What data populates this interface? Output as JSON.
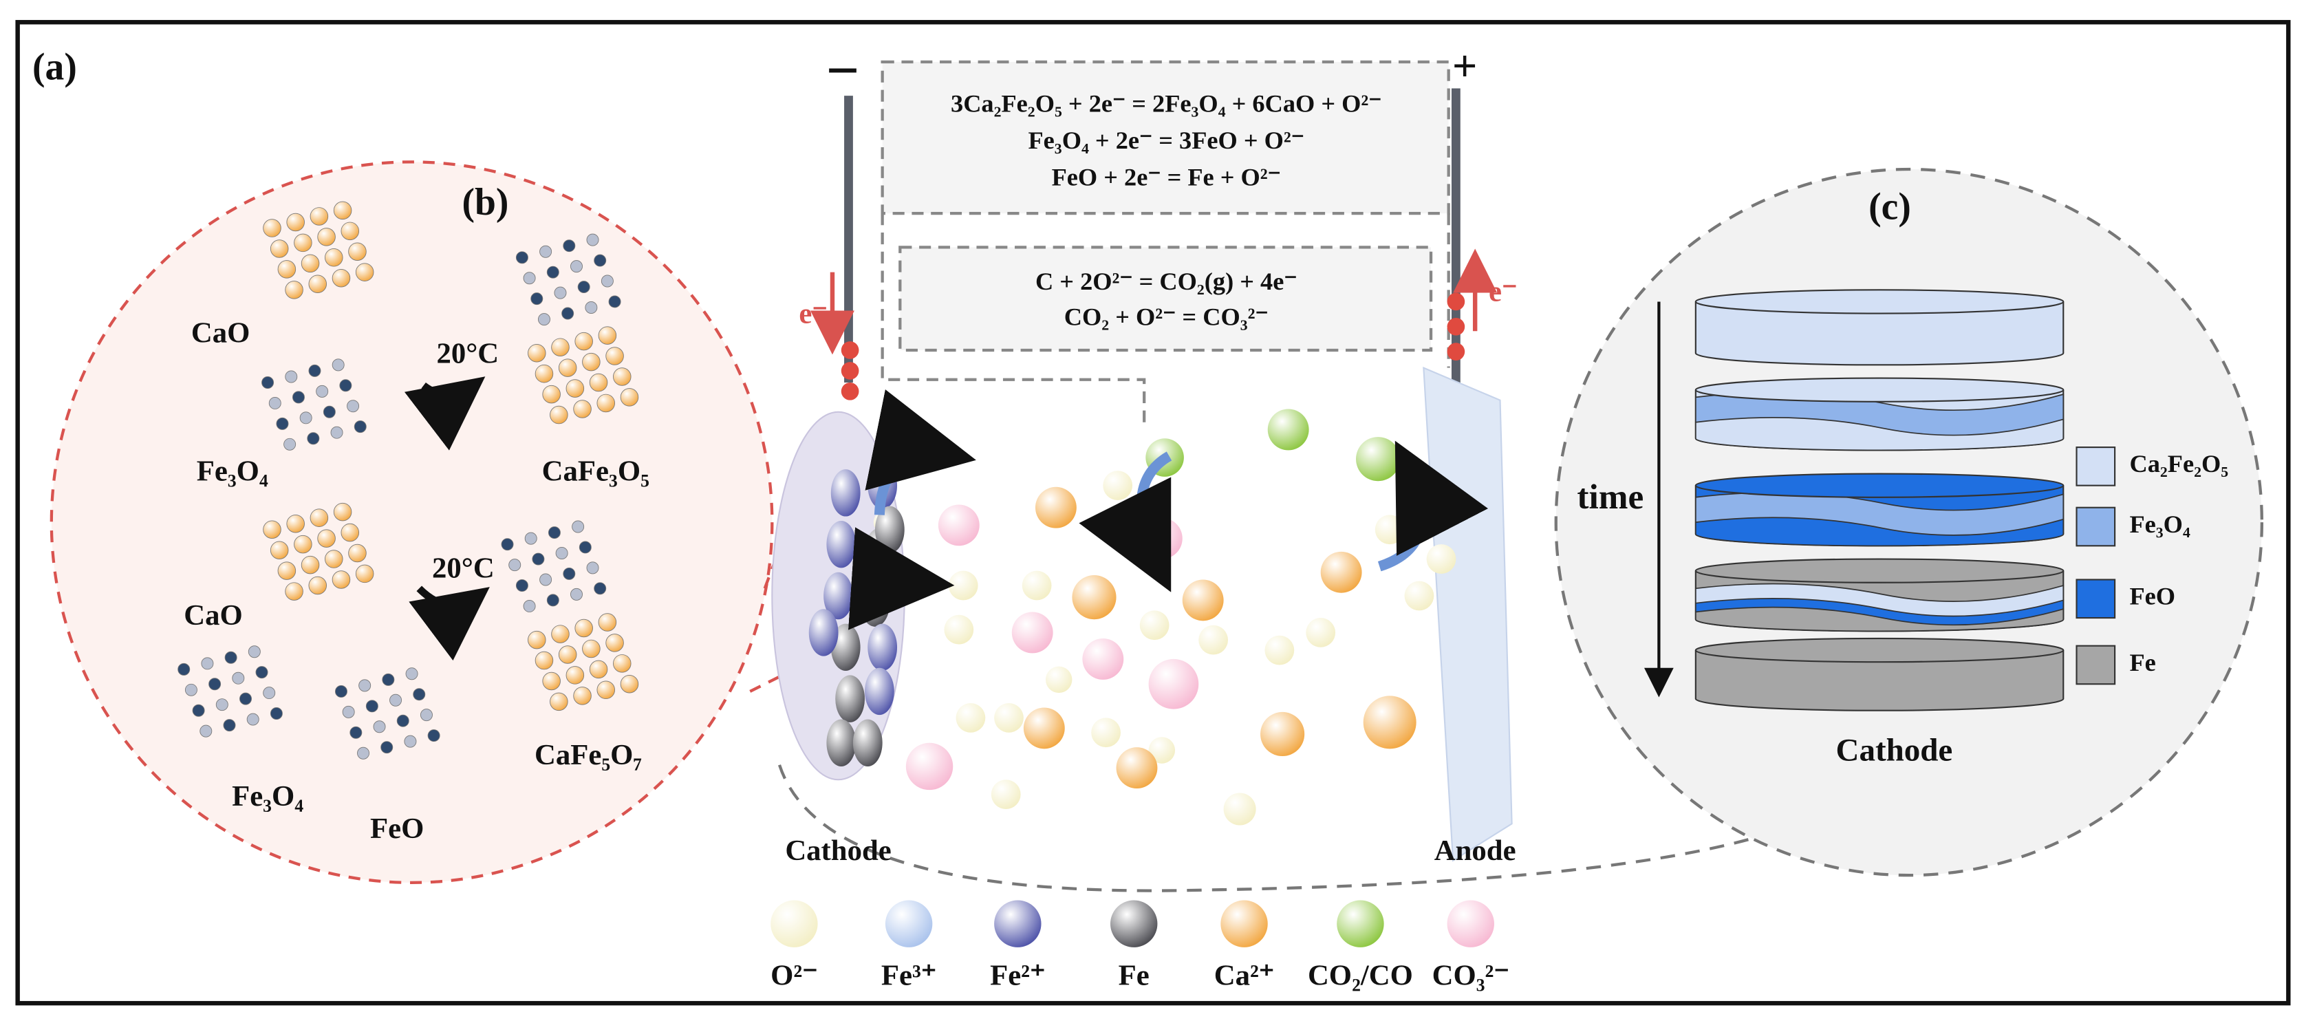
{
  "panel_labels": [
    "(a)",
    "(b)",
    "(c)"
  ],
  "polarity": {
    "negative": "−",
    "positive": "+"
  },
  "electron": [
    "e⁻",
    "e⁻"
  ],
  "equations": {
    "cathode": [
      "3Ca₂Fe₂O₅ + 2e⁻ = 2Fe₃O₄ + 6CaO + O²⁻",
      "Fe₃O₄ + 2e⁻ = 3FeO + O²⁻",
      "FeO + 2e⁻ = Fe + O²⁻"
    ],
    "anode": [
      "C + 2O²⁻ = CO₂(g) + 4e⁻",
      "CO₂ + O²⁻ = CO₃²⁻"
    ]
  },
  "panel_b": {
    "labels": [
      "CaO",
      "Fe₃O₄",
      "CaFe₃O₅",
      "CaO",
      "Fe₃O₄",
      "FeO",
      "CaFe₅O₇"
    ],
    "temperature": [
      "20°C",
      "20°C"
    ]
  },
  "cell": {
    "cathode": "Cathode",
    "anode": "Anode"
  },
  "legend": [
    {
      "name": "O²⁻",
      "color": "#f3eec4"
    },
    {
      "name": "Fe³⁺",
      "color": "#a9c2ec"
    },
    {
      "name": "Fe²⁺",
      "color": "#4d52a8"
    },
    {
      "name": "Fe",
      "color": "#4a4a50"
    },
    {
      "name": "Ca²⁺",
      "color": "#f2a640"
    },
    {
      "name": "CO₂/CO",
      "color": "#8cc63f"
    },
    {
      "name": "CO₃²⁻",
      "color": "#f7b8d2"
    }
  ],
  "panel_c": {
    "time": "time",
    "label": "Cathode",
    "layers": [
      {
        "name": "Ca₂Fe₂O₅",
        "color": "#d3e0f5"
      },
      {
        "name": "Fe₃O₄",
        "color": "#8fb3ea"
      },
      {
        "name": "FeO",
        "color": "#1f6fe0"
      },
      {
        "name": "Fe",
        "color": "#a6a6a6"
      }
    ]
  }
}
